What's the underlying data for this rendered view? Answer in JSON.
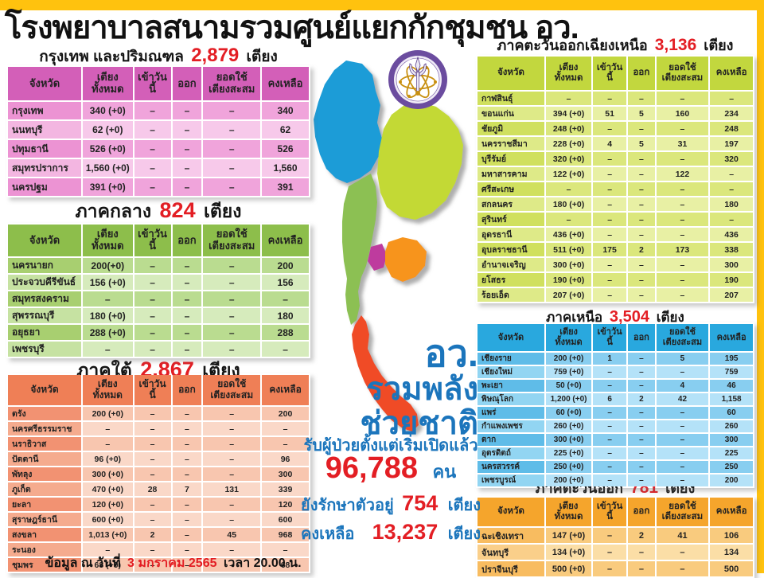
{
  "colors": {
    "accent_yellow": "#FFC20E",
    "number_red": "#E31E24",
    "text_blue": "#1B75BC",
    "logo_purple": "#6B4C9F",
    "logo_gold": "#C89010"
  },
  "page": {
    "title": "โรงพยาบาลสนามรวมศูนย์แยกกักชุมชน อว.",
    "footer_prefix": "ข้อมูล ณ วันที่",
    "footer_date": "3 มกราคม 2565",
    "footer_suffix": "เวลา  20.00 น."
  },
  "table_headers": [
    "จังหวัด",
    "เตียง\nทั้งหมด",
    "เข้าวันนี้",
    "ออก",
    "ยอดใช้\nเตียงสะสม",
    "คงเหลือ"
  ],
  "regions": [
    {
      "id": "bangkok",
      "title": "กรุงเทพ และปริมณฑล",
      "beds": "2,879",
      "unit": "เตียง",
      "colors": {
        "header": "#D35FB8",
        "prov_a": "#EC93D3",
        "prov_b": "#F3B6E1",
        "cell_a": "#F0A4DB",
        "cell_b": "#F7C9EA"
      },
      "rows": [
        [
          "กรุงเทพ",
          "340 (+0)",
          "–",
          "–",
          "–",
          "340"
        ],
        [
          "นนทบุรี",
          "62 (+0)",
          "–",
          "–",
          "–",
          "62"
        ],
        [
          "ปทุมธานี",
          "526 (+0)",
          "–",
          "–",
          "–",
          "526"
        ],
        [
          "สมุทรปราการ",
          "1,560 (+0)",
          "–",
          "–",
          "–",
          "1,560"
        ],
        [
          "นครปฐม",
          "391 (+0)",
          "–",
          "–",
          "–",
          "391"
        ]
      ]
    },
    {
      "id": "central",
      "title": "ภาคกลาง",
      "beds": "824",
      "unit": "เตียง",
      "colors": {
        "header": "#8DBE4B",
        "prov_a": "#A8CF70",
        "prov_b": "#C6E2A2",
        "cell_a": "#BADC90",
        "cell_b": "#D6EBBC"
      },
      "rows": [
        [
          "นครนายก",
          "200(+0)",
          "–",
          "–",
          "–",
          "200"
        ],
        [
          "ประจวบคีรีขันธ์",
          "156 (+0)",
          "–",
          "–",
          "–",
          "156"
        ],
        [
          "สมุทรสงคราม",
          "–",
          "–",
          "–",
          "–",
          "–"
        ],
        [
          "สุพรรณบุรี",
          "180 (+0)",
          "–",
          "–",
          "–",
          "180"
        ],
        [
          "อยุธยา",
          "288 (+0)",
          "–",
          "–",
          "–",
          "288"
        ],
        [
          "เพชรบุรี",
          "–",
          "–",
          "–",
          "–",
          "–"
        ]
      ]
    },
    {
      "id": "south",
      "title": "ภาคใต้",
      "beds": "2,867",
      "unit": "เตียง",
      "colors": {
        "header": "#EF7F56",
        "prov_a": "#F29272",
        "prov_b": "#F5AB8E",
        "cell_a": "#F8C6AF",
        "cell_b": "#FAD8C8"
      },
      "rows": [
        [
          "ตรัง",
          "200 (+0)",
          "–",
          "–",
          "–",
          "200"
        ],
        [
          "นครศรีธรรมราช",
          "–",
          "–",
          "–",
          "–",
          "–"
        ],
        [
          "นราธิวาส",
          "–",
          "–",
          "–",
          "–",
          "–"
        ],
        [
          "ปัตตานี",
          "96 (+0)",
          "–",
          "–",
          "–",
          "96"
        ],
        [
          "พัทลุง",
          "300 (+0)",
          "–",
          "–",
          "–",
          "300"
        ],
        [
          "ภูเก็ต",
          "470 (+0)",
          "28",
          "7",
          "131",
          "339"
        ],
        [
          "ยะลา",
          "120 (+0)",
          "–",
          "–",
          "–",
          "120"
        ],
        [
          "สุราษฎร์ธานี",
          "600 (+0)",
          "–",
          "–",
          "–",
          "600"
        ],
        [
          "สงขลา",
          "1,013 (+0)",
          "2",
          "–",
          "45",
          "968"
        ],
        [
          "ระนอง",
          "–",
          "–",
          "–",
          "–",
          "–"
        ],
        [
          "ชุมพร",
          "68 (+0)",
          "–",
          "–",
          "–",
          "68"
        ]
      ]
    },
    {
      "id": "northeast",
      "title": "ภาคตะวันออกเฉียงเหนือ",
      "beds": "3,136",
      "unit": "เตียง",
      "colors": {
        "header": "#C2D73E",
        "prov_a": "#D0E05E",
        "prov_b": "#DEEA88",
        "cell_a": "#DBE77C",
        "cell_b": "#E8F0A4"
      },
      "rows": [
        [
          "กาฬสินธุ์",
          "–",
          "–",
          "–",
          "–",
          "–"
        ],
        [
          "ขอนแก่น",
          "394 (+0)",
          "51",
          "5",
          "160",
          "234"
        ],
        [
          "ชัยภูมิ",
          "248 (+0)",
          "–",
          "–",
          "–",
          "248"
        ],
        [
          "นครราชสีมา",
          "228 (+0)",
          "4",
          "5",
          "31",
          "197"
        ],
        [
          "บุรีรัมย์",
          "320 (+0)",
          "–",
          "–",
          "–",
          "320"
        ],
        [
          "มหาสารคาม",
          "122 (+0)",
          "–",
          "–",
          "122",
          "–"
        ],
        [
          "ศรีสะเกษ",
          "–",
          "–",
          "–",
          "–",
          "–"
        ],
        [
          "สกลนคร",
          "180 (+0)",
          "–",
          "–",
          "–",
          "180"
        ],
        [
          "สุรินทร์",
          "–",
          "–",
          "–",
          "–",
          "–"
        ],
        [
          "อุดรธานี",
          "436 (+0)",
          "–",
          "–",
          "–",
          "436"
        ],
        [
          "อุบลราชธานี",
          "511 (+0)",
          "175",
          "2",
          "173",
          "338"
        ],
        [
          "อำนาจเจริญ",
          "300 (+0)",
          "–",
          "–",
          "–",
          "300"
        ],
        [
          "ยโสธร",
          "190 (+0)",
          "–",
          "–",
          "–",
          "190"
        ],
        [
          "ร้อยเอ็ด",
          "207 (+0)",
          "–",
          "–",
          "–",
          "207"
        ]
      ]
    },
    {
      "id": "north",
      "title": "ภาคเหนือ",
      "beds": "3,504",
      "unit": "เตียง",
      "colors": {
        "header": "#29A8DE",
        "prov_a": "#5FBCE8",
        "prov_b": "#92D5F2",
        "cell_a": "#88CEF0",
        "cell_b": "#B4E2F8"
      },
      "rows": [
        [
          "เชียงราย",
          "200 (+0)",
          "1",
          "–",
          "5",
          "195"
        ],
        [
          "เชียงใหม่",
          "759 (+0)",
          "–",
          "–",
          "–",
          "759"
        ],
        [
          "พะเยา",
          "50 (+0)",
          "–",
          "–",
          "4",
          "46"
        ],
        [
          "พิษณุโลก",
          "1,200 (+0)",
          "6",
          "2",
          "42",
          "1,158"
        ],
        [
          "แพร่",
          "60 (+0)",
          "–",
          "–",
          "–",
          "60"
        ],
        [
          "กำแพงเพชร",
          "260 (+0)",
          "–",
          "–",
          "–",
          "260"
        ],
        [
          "ตาก",
          "300 (+0)",
          "–",
          "–",
          "–",
          "300"
        ],
        [
          "อุตรดิตถ์",
          "225 (+0)",
          "–",
          "–",
          "–",
          "225"
        ],
        [
          "นครสวรรค์",
          "250 (+0)",
          "–",
          "–",
          "–",
          "250"
        ],
        [
          "เพชรบูรณ์",
          "200 (+0)",
          "–",
          "–",
          "–",
          "200"
        ]
      ]
    },
    {
      "id": "east",
      "title": "ภาคตะวันออก",
      "beds": "781",
      "unit": "เตียง",
      "colors": {
        "header": "#F5A52C",
        "prov_a": "#F8BC60",
        "prov_b": "#FACF8A",
        "cell_a": "#F9CB7E",
        "cell_b": "#FBDEA6"
      },
      "rows": [
        [
          "ฉะเชิงเทรา",
          "147 (+0)",
          "–",
          "2",
          "41",
          "106"
        ],
        [
          "จันทบุรี",
          "134 (+0)",
          "–",
          "–",
          "–",
          "134"
        ],
        [
          "ปราจีนบุรี",
          "500 (+0)",
          "–",
          "–",
          "–",
          "500"
        ]
      ]
    }
  ],
  "center": {
    "campaign_line1": "อว.",
    "campaign_line2": "รวมพลัง",
    "campaign_line3": "ช่วยชาติ",
    "admitted_label": "รับผู้ป่วยตั้งแต่เริ่มเปิดแล้ว",
    "admitted_value": "96,788",
    "admitted_unit": "คน",
    "treating_label": "ยังรักษาตัวอยู่",
    "treating_value": "754",
    "treating_unit": "เตียง",
    "remaining_label": "คงเหลือ",
    "remaining_value": "13,237",
    "remaining_unit": "เตียง"
  },
  "map": {
    "regions": [
      {
        "id": "north",
        "name": "ภาคเหนือ",
        "color": "#1E9CD7"
      },
      {
        "id": "northeast",
        "name": "ภาคตะวันออกเฉียงเหนือ",
        "color": "#C3D935"
      },
      {
        "id": "central",
        "name": "ภาคกลาง",
        "color": "#8CC052"
      },
      {
        "id": "bangkok",
        "name": "กรุงเทพ และปริมณฑล",
        "color": "#BE3A9E"
      },
      {
        "id": "east",
        "name": "ภาคตะวันออก",
        "color": "#F7941E"
      },
      {
        "id": "south",
        "name": "ภาคใต้",
        "color": "#F04B26"
      }
    ]
  }
}
